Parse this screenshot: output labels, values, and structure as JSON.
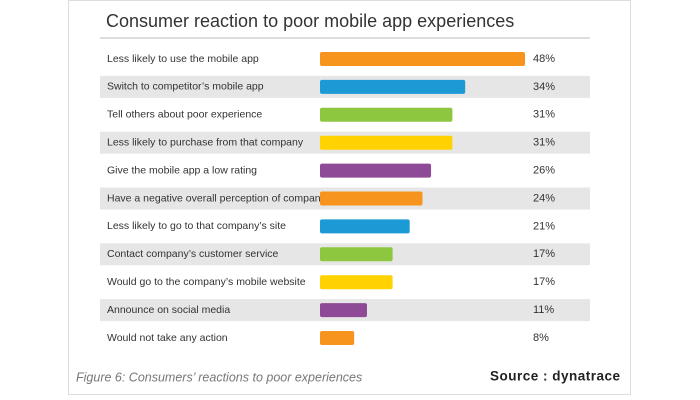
{
  "chart_data": {
    "type": "bar",
    "orientation": "horizontal",
    "title": "Consumer reaction to poor mobile app experiences",
    "categories": [
      "Less likely to use the mobile app",
      "Switch to competitor’s mobile app",
      "Tell others about poor experience",
      "Less likely to purchase from that company",
      "Give the mobile app a low rating",
      "Have a negative overall perception of company",
      "Less likely to go to that company’s site",
      "Contact company’s customer service",
      "Would go to the company’s mobile website",
      "Announce on social media",
      "Would not take any action"
    ],
    "values": [
      48,
      34,
      31,
      31,
      26,
      24,
      21,
      17,
      17,
      11,
      8
    ],
    "value_labels": [
      "48%",
      "34%",
      "31%",
      "31%",
      "26%",
      "24%",
      "21%",
      "17%",
      "17%",
      "11%",
      "8%"
    ],
    "colors": [
      "#f7941d",
      "#1b9ad6",
      "#8dc63f",
      "#ffd200",
      "#8e4a97",
      "#f7941d",
      "#1b9ad6",
      "#8dc63f",
      "#ffd200",
      "#8e4a97",
      "#f7941d"
    ],
    "caption": "Figure 6: Consumers’ reactions to poor experiences",
    "source": "Source : dynatrace"
  }
}
